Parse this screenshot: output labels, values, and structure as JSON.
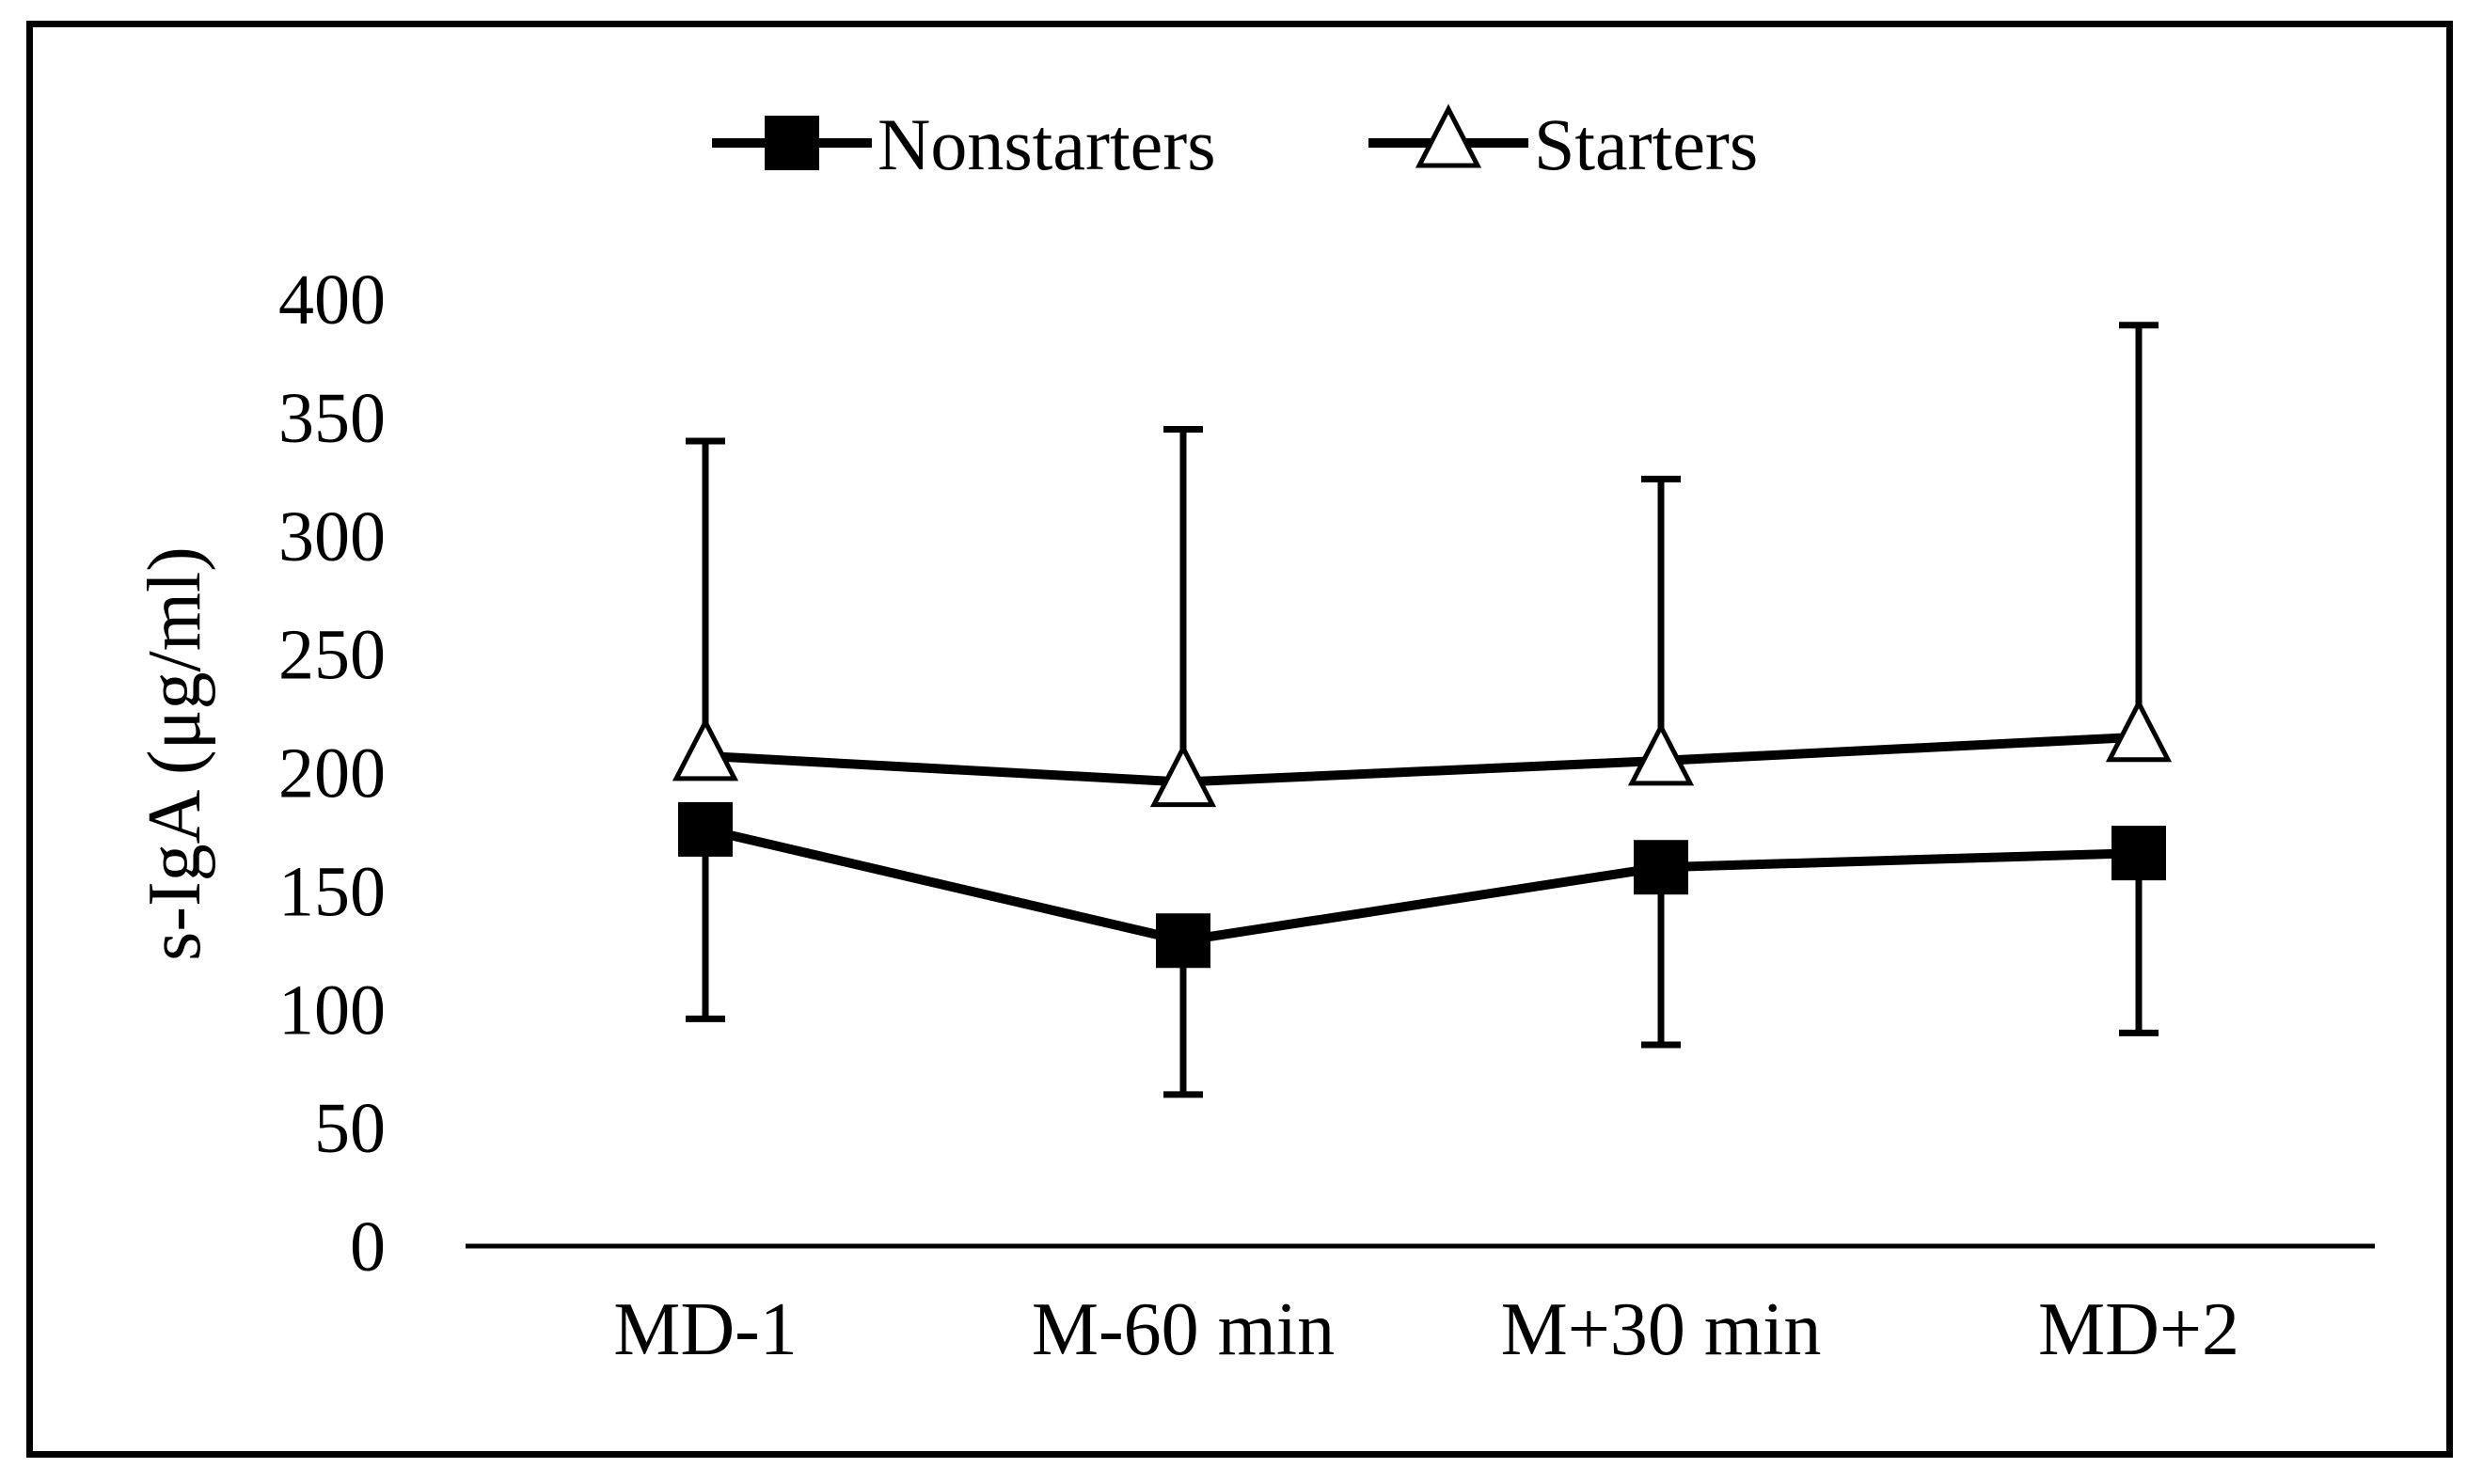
{
  "chart_data": {
    "type": "line",
    "title": "",
    "xlabel": "",
    "ylabel": "s-IgA (μg/ml)",
    "categories": [
      "MD-1",
      "M-60 min",
      "M+30 min",
      "MD+2"
    ],
    "ylim": [
      0,
      400
    ],
    "yticks": [
      0,
      50,
      100,
      150,
      200,
      250,
      300,
      350,
      400
    ],
    "ytick_labels": [
      "0",
      "50",
      "100",
      "150",
      "200",
      "250",
      "300",
      "350",
      "400"
    ],
    "grid": false,
    "legend_position": "top-center",
    "series": [
      {
        "name": "Nonstarters",
        "marker": "filled-square",
        "values": [
          176,
          129,
          160,
          166
        ],
        "error_minus": [
          80,
          65,
          75,
          76
        ]
      },
      {
        "name": "Starters",
        "marker": "open-triangle",
        "values": [
          207,
          196,
          205,
          215
        ],
        "error_plus": [
          133,
          149,
          119,
          174
        ]
      }
    ],
    "colors": {
      "line": "#000000",
      "background": "#ffffff"
    }
  }
}
